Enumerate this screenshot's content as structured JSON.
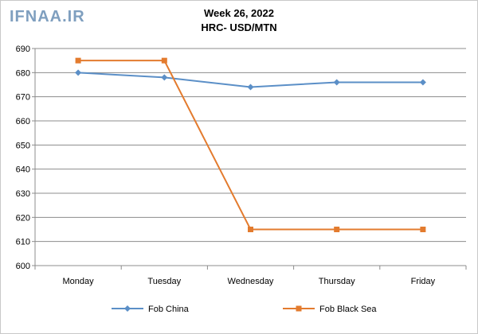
{
  "watermark": "IFNAA.IR",
  "chart_data": {
    "type": "line",
    "title": "Week 26, 2022",
    "subtitle": "HRC- USD/MTN",
    "categories": [
      "Monday",
      "Tuesday",
      "Wednesday",
      "Thursday",
      "Friday"
    ],
    "series": [
      {
        "name": "Fob China",
        "values": [
          680,
          678,
          674,
          676,
          676
        ],
        "color": "#5b8fc7",
        "marker": "diamond"
      },
      {
        "name": "Fob Black Sea",
        "values": [
          685,
          685,
          615,
          615,
          615
        ],
        "color": "#e37b2e",
        "marker": "square"
      }
    ],
    "ylim": [
      600,
      690
    ],
    "yticks": [
      600,
      610,
      620,
      630,
      640,
      650,
      660,
      670,
      680,
      690
    ],
    "grid": true,
    "legend": "bottom"
  }
}
